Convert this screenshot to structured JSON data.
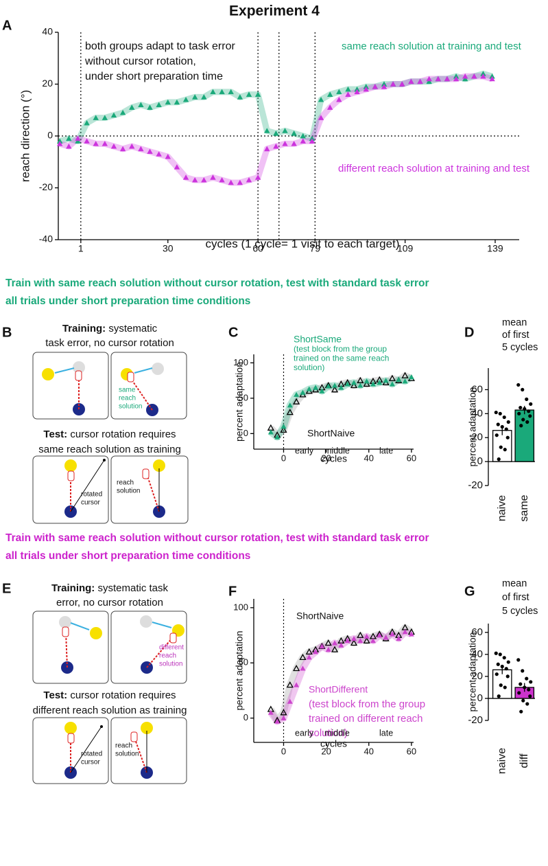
{
  "figure": {
    "title": "Experiment 4",
    "panel_letters": [
      "A",
      "B",
      "C",
      "D",
      "E",
      "F",
      "G"
    ],
    "heading_same": [
      "Train with same reach solution without cursor rotation, test with standard task error",
      "all trials under short preparation time conditions"
    ],
    "heading_diff": [
      "Train with same reach solution without cursor rotation, test with standard task error",
      "all trials under short preparation time conditions"
    ],
    "b_training": [
      "Training:",
      " systematic",
      "task error, no cursor rotation"
    ],
    "b_test": [
      "Test:",
      " cursor rotation requires",
      "same reach solution as training"
    ],
    "b_labels": [
      "same",
      "reach",
      "solution",
      "rotated",
      "cursor",
      "reach",
      "solution"
    ],
    "e_training": [
      "Training:",
      " systematic task",
      "error, no cursor rotation"
    ],
    "e_test": [
      "Test:",
      " cursor rotation requires",
      "different reach solution as training"
    ],
    "e_labels": [
      "different",
      "reach",
      "solution",
      "rotated",
      "cursor",
      "reach",
      "solution"
    ]
  },
  "chart_data": [
    {
      "type": "scatter",
      "ylabel": "reach direction (°)",
      "xlabel": "cycles (1 cycle= 1 visit to each target)",
      "annotation": [
        "both groups adapt to task error",
        "without cursor rotation,",
        "under short preparation time"
      ],
      "x": [
        -6,
        -3,
        0,
        3,
        6,
        9,
        12,
        15,
        18,
        21,
        24,
        27,
        30,
        33,
        36,
        39,
        42,
        45,
        48,
        51,
        54,
        57,
        60,
        63,
        66,
        69,
        72,
        75,
        78,
        81,
        84,
        87,
        90,
        93,
        96,
        99,
        102,
        105,
        108,
        111,
        114,
        117,
        120,
        123,
        126,
        129,
        132,
        135,
        138
      ],
      "series": [
        {
          "name": "same reach solution at training and test",
          "color": "#1aa97a",
          "marker": "filled",
          "values": [
            -2,
            -1,
            -2,
            5,
            7,
            7,
            8,
            9,
            11,
            12,
            11,
            12,
            13,
            13,
            14,
            15,
            15,
            17,
            17,
            17,
            15,
            16,
            16,
            2,
            1,
            2,
            1,
            0,
            -1,
            14,
            16,
            17,
            18,
            18,
            19,
            19,
            20,
            20,
            20,
            21,
            21,
            21,
            22,
            22,
            23,
            22,
            23,
            24,
            23
          ]
        },
        {
          "name": "different reach solution at training and test",
          "color": "#cc33dd",
          "marker": "filled",
          "values": [
            -3,
            -4,
            -1,
            -2,
            -3,
            -3,
            -4,
            -5,
            -4,
            -5,
            -6,
            -7,
            -8,
            -12,
            -16,
            -17,
            -17,
            -16,
            -17,
            -18,
            -18,
            -17,
            -16,
            -5,
            -4,
            -3,
            -3,
            -2,
            -2,
            7,
            11,
            14,
            16,
            17,
            18,
            19,
            19,
            20,
            20,
            21,
            21,
            22,
            22,
            22,
            22,
            23,
            23,
            23,
            22
          ]
        }
      ],
      "xlim": [
        -6.5,
        147
      ],
      "ylim": [
        -40,
        40
      ],
      "xticks": [
        1,
        30,
        60,
        79,
        109,
        139
      ],
      "yticks": [
        -40,
        -20,
        0,
        20,
        40
      ],
      "vlines": [
        1,
        60,
        67,
        79
      ],
      "hlines": [
        0
      ]
    },
    {
      "type": "scatter",
      "ylabel": "percent adaptation",
      "xlabel": "cycles",
      "annotation": [
        "(test block from the group",
        "trained on the same reach",
        "solution)"
      ],
      "phase_labels": [
        "early",
        "middle",
        "late"
      ],
      "x": [
        -6,
        -3,
        0,
        3,
        6,
        9,
        12,
        15,
        18,
        21,
        24,
        27,
        30,
        33,
        36,
        39,
        42,
        45,
        48,
        51,
        54,
        57,
        60
      ],
      "series": [
        {
          "name": "ShortNaive",
          "color": "#000000",
          "marker": "open",
          "values": [
            8,
            -2,
            5,
            30,
            45,
            55,
            60,
            62,
            65,
            68,
            62,
            70,
            72,
            68,
            75,
            70,
            74,
            76,
            72,
            78,
            75,
            82,
            78
          ]
        },
        {
          "name": "ShortSame",
          "color": "#1aa97a",
          "marker": "filled",
          "values": [
            2,
            -5,
            10,
            40,
            55,
            58,
            63,
            65,
            60,
            67,
            68,
            65,
            70,
            72,
            68,
            74,
            70,
            72,
            75,
            70,
            76,
            74,
            80
          ]
        }
      ],
      "xlim": [
        -14,
        61
      ],
      "ylim": [
        -22,
        112
      ],
      "xticks": [
        0,
        20,
        40,
        60
      ],
      "yticks": [
        0,
        50,
        100
      ],
      "vlines": [
        0
      ]
    },
    {
      "type": "bar",
      "title": [
        "mean",
        "of first",
        "5 cycles"
      ],
      "ylabel": "percent adaptation",
      "categories": [
        "naive",
        "same"
      ],
      "values": [
        26,
        43
      ],
      "errors": [
        4,
        3.5
      ],
      "colors": [
        "#ffffff",
        "#1aa97a"
      ],
      "points": [
        [
          41,
          40,
          37,
          33,
          31,
          29,
          27,
          22,
          20,
          12,
          10,
          2
        ],
        [
          64,
          60,
          52,
          48,
          45,
          44,
          42,
          40,
          38,
          35,
          33,
          30
        ]
      ],
      "ylim": [
        -20,
        78
      ],
      "yticks": [
        -20,
        0,
        20,
        40,
        60
      ]
    },
    {
      "type": "scatter",
      "ylabel": "percent adaptation",
      "xlabel": "cycles",
      "annotation": [
        "(test block from the group",
        "trained on different reach",
        "solution)"
      ],
      "phase_labels": [
        "early",
        "middle",
        "late"
      ],
      "x": [
        -6,
        -3,
        0,
        3,
        6,
        9,
        12,
        15,
        18,
        21,
        24,
        27,
        30,
        33,
        36,
        39,
        42,
        45,
        48,
        51,
        54,
        57,
        60
      ],
      "series": [
        {
          "name": "ShortNaive",
          "color": "#000000",
          "marker": "open",
          "values": [
            8,
            -2,
            5,
            30,
            45,
            55,
            60,
            62,
            65,
            68,
            62,
            70,
            72,
            68,
            75,
            70,
            74,
            76,
            72,
            78,
            75,
            82,
            78
          ]
        },
        {
          "name": "ShortDifferent",
          "color": "#cc44cc",
          "marker": "filled",
          "values": [
            5,
            -3,
            0,
            15,
            30,
            45,
            55,
            60,
            65,
            62,
            68,
            66,
            70,
            72,
            70,
            74,
            70,
            75,
            73,
            76,
            72,
            78,
            76
          ]
        }
      ],
      "xlim": [
        -14,
        61
      ],
      "ylim": [
        -22,
        108
      ],
      "xticks": [
        0,
        20,
        40,
        60
      ],
      "yticks": [
        0,
        50,
        100
      ],
      "vlines": [
        0
      ]
    },
    {
      "type": "bar",
      "title": [
        "mean",
        "of first",
        "5 cycles"
      ],
      "ylabel": "percent adaptation",
      "categories": [
        "naive",
        "diff"
      ],
      "values": [
        26,
        10
      ],
      "errors": [
        4,
        4
      ],
      "colors": [
        "#ffffff",
        "#cc33cc"
      ],
      "points": [
        [
          41,
          40,
          37,
          33,
          31,
          29,
          27,
          22,
          20,
          12,
          10,
          2
        ],
        [
          35,
          25,
          18,
          15,
          13,
          10,
          8,
          5,
          2,
          -2,
          -5,
          -12
        ]
      ],
      "ylim": [
        -20,
        68
      ],
      "yticks": [
        -20,
        0,
        20,
        40,
        60
      ]
    }
  ]
}
